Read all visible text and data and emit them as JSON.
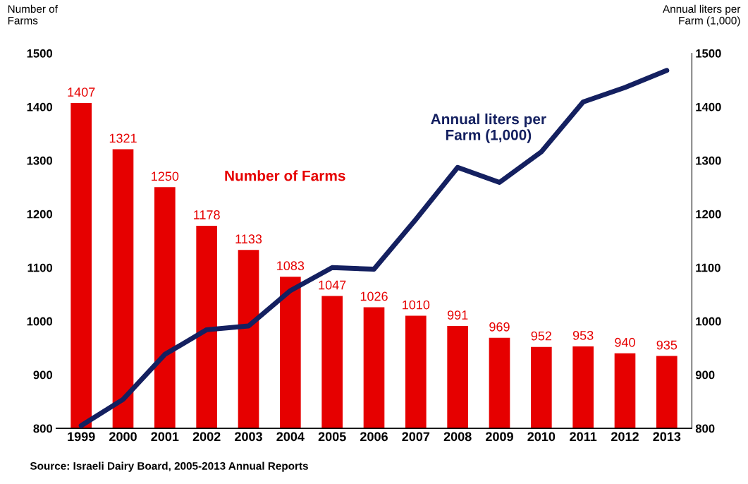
{
  "chart_data": {
    "type": "bar",
    "ylabel": "Number of\nFarms",
    "y2label": "Annual liters per\nFarm (1,000)",
    "categories": [
      "1999",
      "2000",
      "2001",
      "2002",
      "2003",
      "2004",
      "2005",
      "2006",
      "2007",
      "2008",
      "2009",
      "2010",
      "2011",
      "2012",
      "2013"
    ],
    "series": [
      {
        "name": "Number of Farms",
        "color": "#e60000",
        "values": [
          1407,
          1321,
          1250,
          1178,
          1133,
          1083,
          1047,
          1026,
          1010,
          991,
          969,
          952,
          953,
          940,
          935
        ],
        "data_labels": true
      },
      {
        "name": "Annual liters per\nFarm (1,000)",
        "type": "line",
        "axis": "y2",
        "color": "#142060",
        "values": [
          805,
          854,
          938,
          984,
          991,
          1057,
          1100,
          1097,
          1190,
          1287,
          1259,
          1316,
          1409,
          1436,
          1468
        ]
      }
    ],
    "ylim": [
      800,
      1500
    ],
    "yticks": [
      800,
      900,
      1000,
      1100,
      1200,
      1300,
      1400,
      1500
    ],
    "y2lim": [
      800,
      1500
    ],
    "y2ticks": [
      800,
      900,
      1000,
      1100,
      1200,
      1300,
      1400,
      1500
    ],
    "grid": false,
    "legend": false,
    "marker": "none",
    "line_style": "solid",
    "annotations": [
      "Source: Israeli Dairy Board, 2005-2013 Annual Reports"
    ]
  }
}
